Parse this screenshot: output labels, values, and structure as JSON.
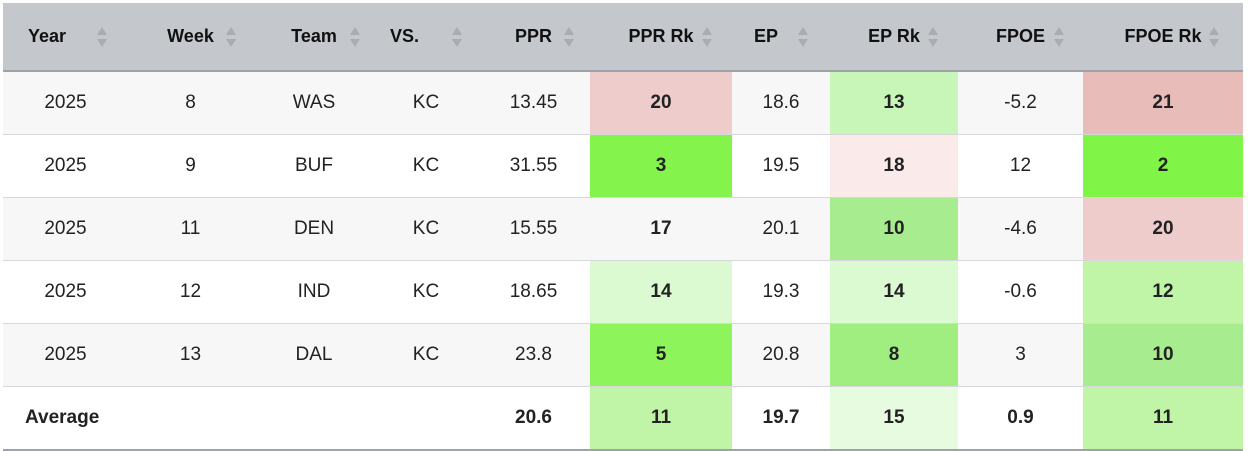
{
  "columns": [
    {
      "label": "Year"
    },
    {
      "label": "Week"
    },
    {
      "label": "Team"
    },
    {
      "label": "VS."
    },
    {
      "label": "PPR"
    },
    {
      "label": "PPR Rk"
    },
    {
      "label": "EP"
    },
    {
      "label": "EP Rk"
    },
    {
      "label": "FPOE"
    },
    {
      "label": "FPOE Rk"
    }
  ],
  "rows": [
    {
      "year": "2025",
      "week": "8",
      "team": "WAS",
      "vs": "KC",
      "ppr": "13.45",
      "ppr_rk": "20",
      "ep": "18.6",
      "ep_rk": "13",
      "fpoe": "-5.2",
      "fpoe_rk": "21",
      "colors": {
        "ppr_rk": "#efcccc",
        "ep_rk": "#c8f5b8",
        "fpoe_rk": "#e8bcb8"
      }
    },
    {
      "year": "2025",
      "week": "9",
      "team": "BUF",
      "vs": "KC",
      "ppr": "31.55",
      "ppr_rk": "3",
      "ep": "19.5",
      "ep_rk": "18",
      "fpoe": "12",
      "fpoe_rk": "2",
      "colors": {
        "ppr_rk": "#84f44c",
        "ep_rk": "#fbeaea",
        "fpoe_rk": "#80f548"
      }
    },
    {
      "year": "2025",
      "week": "11",
      "team": "DEN",
      "vs": "KC",
      "ppr": "15.55",
      "ppr_rk": "17",
      "ep": "20.1",
      "ep_rk": "10",
      "fpoe": "-4.6",
      "fpoe_rk": "20",
      "colors": {
        "ppr_rk": "#f7f7f8",
        "ep_rk": "#a8ec90",
        "fpoe_rk": "#efcccc"
      }
    },
    {
      "year": "2025",
      "week": "12",
      "team": "IND",
      "vs": "KC",
      "ppr": "18.65",
      "ppr_rk": "14",
      "ep": "19.3",
      "ep_rk": "14",
      "fpoe": "-0.6",
      "fpoe_rk": "12",
      "colors": {
        "ppr_rk": "#dcfad2",
        "ep_rk": "#dcfad2",
        "fpoe_rk": "#c0f5a8"
      }
    },
    {
      "year": "2025",
      "week": "13",
      "team": "DAL",
      "vs": "KC",
      "ppr": "23.8",
      "ppr_rk": "5",
      "ep": "20.8",
      "ep_rk": "8",
      "fpoe": "3",
      "fpoe_rk": "10",
      "colors": {
        "ppr_rk": "#8ef45c",
        "ep_rk": "#a0ee80",
        "fpoe_rk": "#a8ec90"
      }
    }
  ],
  "average": {
    "label": "Average",
    "ppr": "20.6",
    "ppr_rk": "11",
    "ep": "19.7",
    "ep_rk": "15",
    "fpoe": "0.9",
    "fpoe_rk": "11",
    "colors": {
      "ppr_rk": "#c0f5a8",
      "ep_rk": "#e6fbe0",
      "fpoe_rk": "#c0f5a8"
    }
  }
}
